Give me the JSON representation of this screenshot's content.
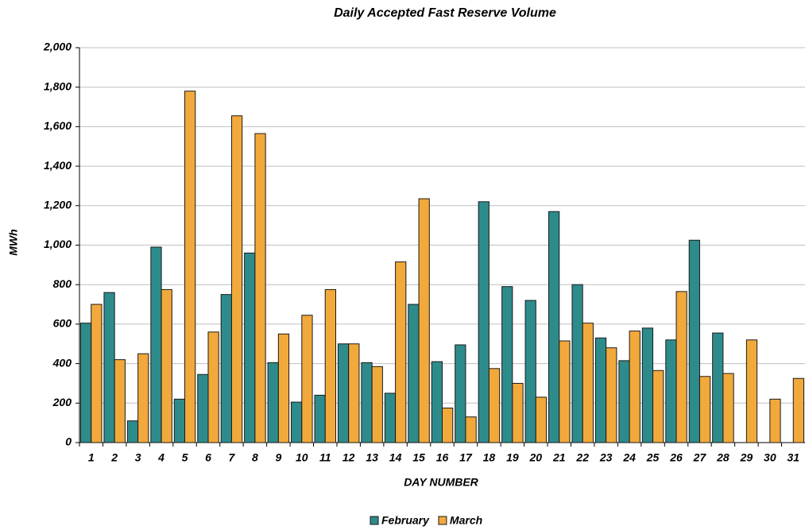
{
  "chart_data": {
    "type": "bar",
    "title": "Daily Accepted Fast Reserve Volume",
    "x_label": "DAY NUMBER",
    "y_label": "MWh",
    "categories": [
      "1",
      "2",
      "3",
      "4",
      "5",
      "6",
      "7",
      "8",
      "9",
      "10",
      "11",
      "12",
      "13",
      "14",
      "15",
      "16",
      "17",
      "18",
      "19",
      "20",
      "21",
      "22",
      "23",
      "24",
      "25",
      "26",
      "27",
      "28",
      "29",
      "30",
      "31"
    ],
    "series": [
      {
        "name": "February",
        "color": "#2e8b8b",
        "values": [
          605,
          760,
          110,
          990,
          220,
          345,
          750,
          960,
          405,
          205,
          240,
          500,
          405,
          250,
          700,
          410,
          495,
          1220,
          790,
          720,
          1170,
          800,
          530,
          415,
          580,
          520,
          1025,
          555,
          null,
          null,
          null
        ]
      },
      {
        "name": "March",
        "color": "#f2a93b",
        "values": [
          700,
          420,
          450,
          775,
          1780,
          560,
          1655,
          1565,
          550,
          645,
          775,
          500,
          385,
          915,
          1235,
          175,
          130,
          375,
          300,
          230,
          515,
          605,
          480,
          565,
          365,
          765,
          335,
          350,
          520,
          220,
          325
        ]
      }
    ],
    "ylim": [
      0,
      2000
    ],
    "yticks": [
      0,
      200,
      400,
      600,
      800,
      {
        "value": 1000,
        "label": "1,000"
      },
      {
        "value": 1200,
        "label": "1,200"
      },
      {
        "value": 1400,
        "label": "1,400"
      },
      {
        "value": 1600,
        "label": "1,600"
      },
      {
        "value": 1800,
        "label": "1,800"
      },
      {
        "value": 2000,
        "label": "2,000"
      }
    ],
    "grid": true,
    "legend": "bottom"
  }
}
